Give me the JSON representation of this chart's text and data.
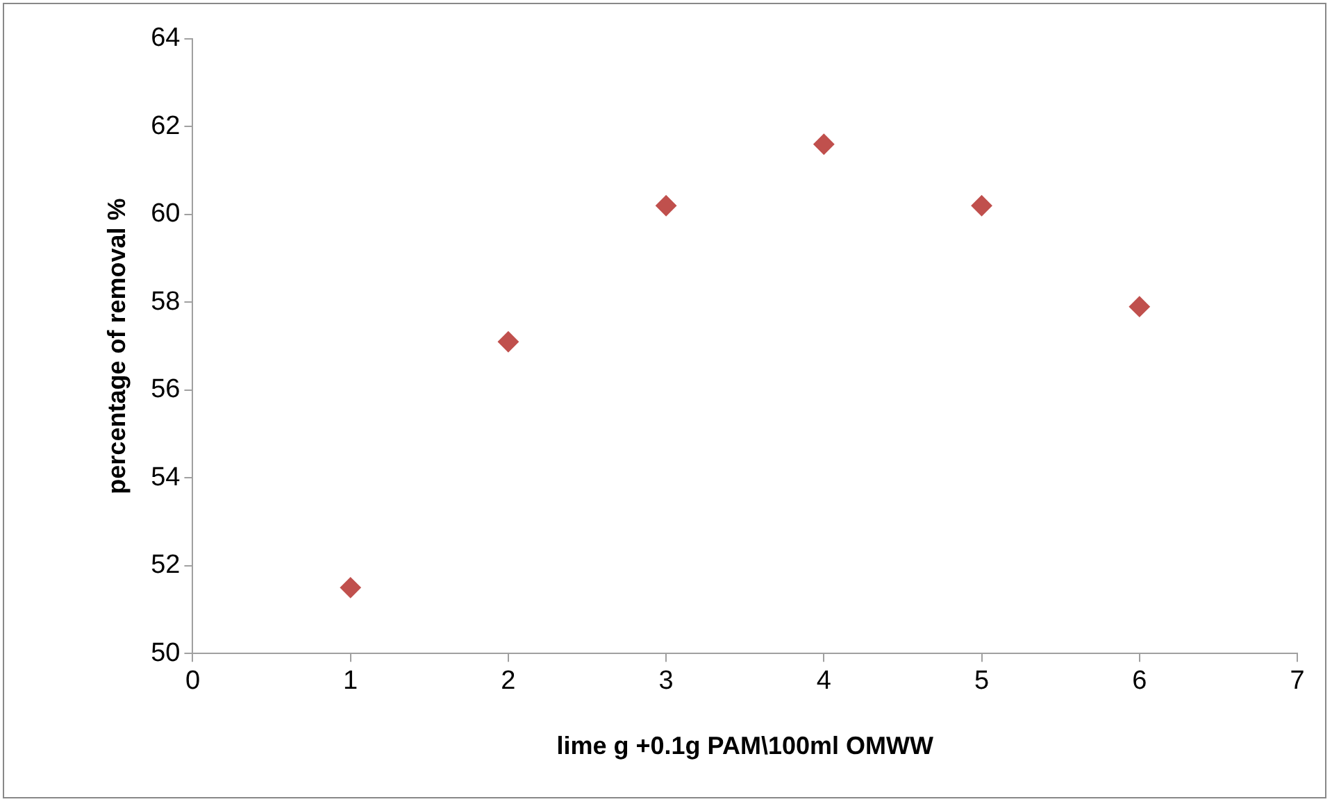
{
  "chart_data": {
    "type": "scatter",
    "xlabel": "lime g +0.1g PAM\\100ml OMWW",
    "ylabel": "percentage of removal %",
    "x": [
      1,
      2,
      3,
      4,
      5,
      6
    ],
    "series": [
      {
        "color": "#c0504d",
        "values": [
          51.5,
          57.1,
          60.2,
          61.6,
          60.2,
          57.9
        ]
      }
    ],
    "xlim": [
      0,
      7
    ],
    "xticks": [
      0,
      1,
      2,
      3,
      4,
      5,
      6,
      7
    ],
    "ylim": [
      50,
      64
    ],
    "yticks": [
      50,
      52,
      54,
      56,
      58,
      60,
      62,
      64
    ],
    "grid": false,
    "legend": false,
    "marker": "diamond"
  }
}
